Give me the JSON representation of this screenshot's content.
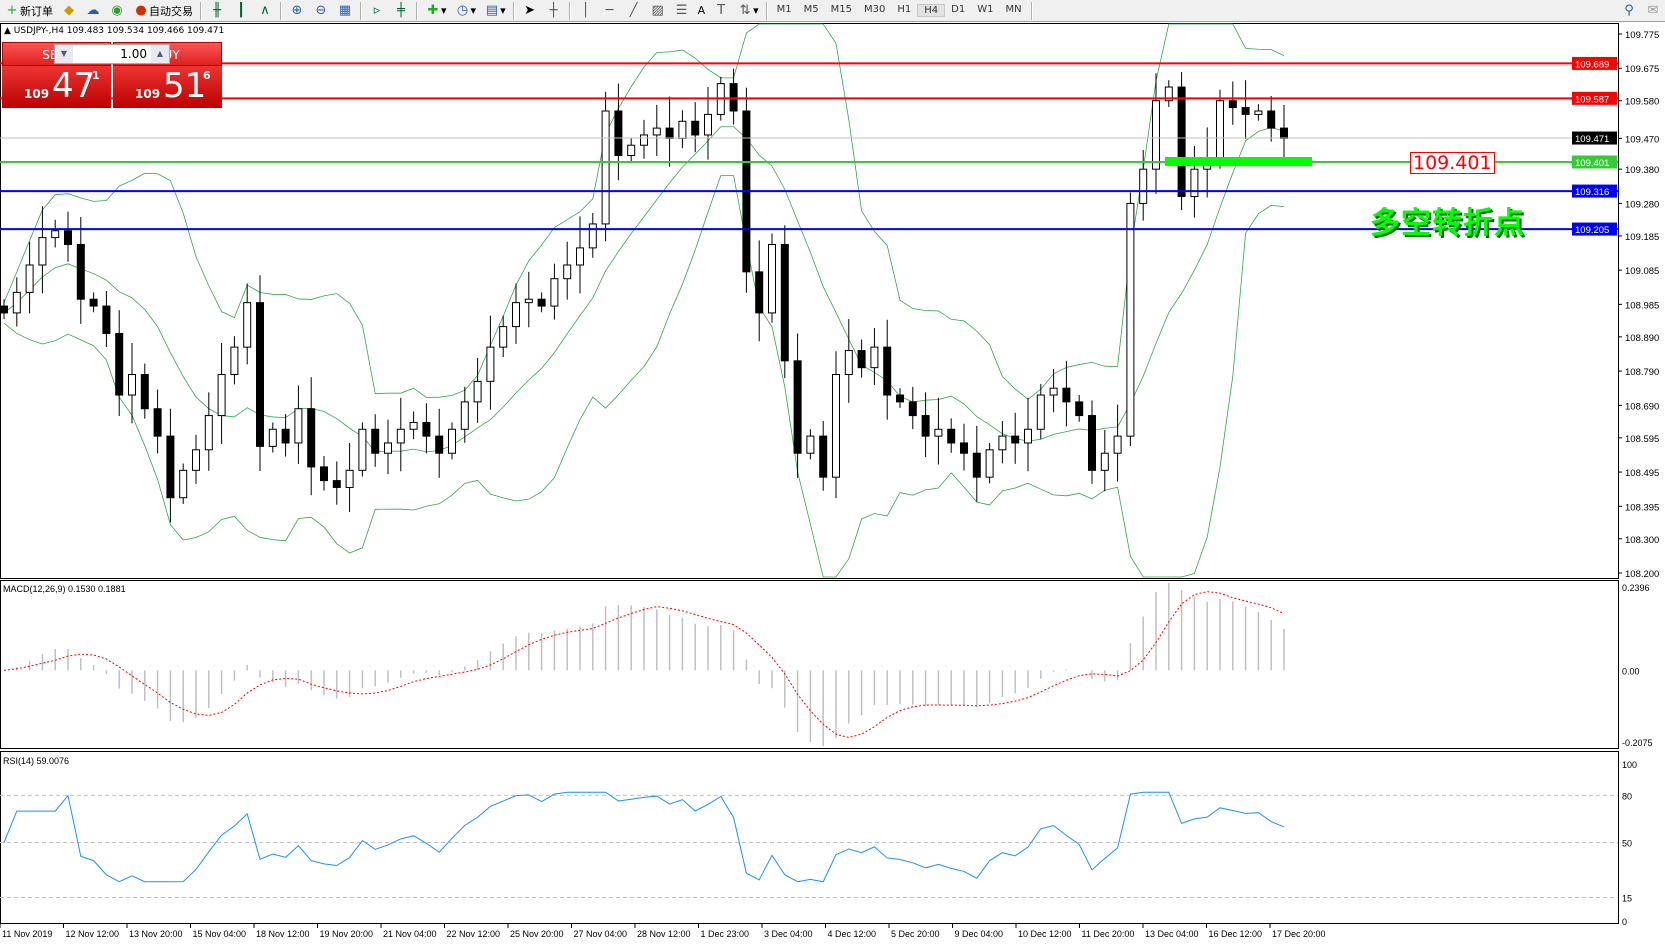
{
  "toolbar": {
    "new_order": "新订单",
    "auto_trading": "自动交易",
    "text_tool": "A",
    "timeframes": [
      "M1",
      "M5",
      "M15",
      "M30",
      "H1",
      "H4",
      "D1",
      "W1",
      "MN"
    ],
    "active_timeframe": "H4"
  },
  "chart_header": {
    "symbol_line": "USDJPY-,H4  109.483 109.534 109.466 109.471"
  },
  "quote_panel": {
    "sell_label": "SELL",
    "buy_label": "BUY",
    "lot": "1.00",
    "sell": {
      "prefix": "109",
      "big": "47",
      "sup": "1"
    },
    "buy": {
      "prefix": "109",
      "big": "51",
      "sup": "6"
    }
  },
  "annotations": {
    "level_label": "109.401",
    "pivot_text": "多空转折点"
  },
  "chart_data": {
    "type": "candlestick",
    "symbol": "USDJPY-",
    "timeframe": "H4",
    "ylim": [
      108.2,
      109.775
    ],
    "y_ticks": [
      "109.775",
      "109.675",
      "109.580",
      "109.470",
      "109.380",
      "109.280",
      "109.185",
      "109.085",
      "108.985",
      "108.890",
      "108.790",
      "108.690",
      "108.595",
      "108.495",
      "108.395",
      "108.300",
      "108.200"
    ],
    "x_ticks": [
      "11 Nov 2019",
      "12 Nov 12:00",
      "13 Nov 20:00",
      "15 Nov 04:00",
      "18 Nov 12:00",
      "19 Nov 20:00",
      "21 Nov 04:00",
      "22 Nov 12:00",
      "25 Nov 20:00",
      "27 Nov 04:00",
      "28 Nov 12:00",
      "1 Dec 23:00",
      "3 Dec 04:00",
      "4 Dec 12:00",
      "5 Dec 20:00",
      "9 Dec 04:00",
      "10 Dec 12:00",
      "11 Dec 20:00",
      "13 Dec 04:00",
      "16 Dec 12:00",
      "17 Dec 20:00"
    ],
    "closes": [
      108.96,
      109.02,
      109.1,
      109.18,
      109.2,
      109.16,
      109.0,
      108.98,
      108.9,
      108.72,
      108.78,
      108.68,
      108.6,
      108.42,
      108.5,
      108.56,
      108.66,
      108.78,
      108.86,
      108.99,
      108.57,
      108.62,
      108.58,
      108.68,
      108.51,
      108.47,
      108.45,
      108.5,
      108.62,
      108.55,
      108.58,
      108.62,
      108.64,
      108.6,
      108.55,
      108.62,
      108.7,
      108.76,
      108.86,
      108.92,
      108.99,
      109.0,
      108.98,
      109.06,
      109.1,
      109.15,
      109.22,
      109.55,
      109.42,
      109.45,
      109.48,
      109.5,
      109.47,
      109.52,
      109.48,
      109.54,
      109.63,
      109.55,
      109.08,
      108.96,
      109.16,
      108.82,
      108.55,
      108.6,
      108.48,
      108.78,
      108.85,
      108.8,
      108.86,
      108.72,
      108.7,
      108.66,
      108.6,
      108.62,
      108.58,
      108.55,
      108.48,
      108.56,
      108.6,
      108.58,
      108.62,
      108.72,
      108.74,
      108.7,
      108.66,
      108.5,
      108.55,
      108.6,
      109.28,
      109.38,
      109.58,
      109.62,
      109.3,
      109.38,
      109.41,
      109.58,
      109.56,
      109.54,
      109.55,
      109.5,
      109.47
    ],
    "horizontal_lines": [
      {
        "price": 109.689,
        "label": "109.689",
        "color": "#ff0000"
      },
      {
        "price": 109.587,
        "label": "109.587",
        "color": "#ff0000"
      },
      {
        "price": 109.471,
        "label": "109.471",
        "color": "#000000",
        "line_color": "#c0c0c0"
      },
      {
        "price": 109.401,
        "label": "109.401",
        "color": "#33cc33"
      },
      {
        "price": 109.316,
        "label": "109.316",
        "color": "#0000ff"
      },
      {
        "price": 109.205,
        "label": "109.205",
        "color": "#0000ff"
      }
    ],
    "macd": {
      "label": "MACD(12,26,9) 0.1530 0.1881",
      "ticks": [
        "0.2396",
        "0.00",
        "-0.2075"
      ],
      "ylim": [
        -0.2075,
        0.2396
      ]
    },
    "rsi": {
      "label": "RSI(14) 59.0076",
      "ticks": [
        "100",
        "80",
        "50",
        "15",
        "0"
      ],
      "levels": [
        80,
        50,
        15
      ]
    }
  }
}
